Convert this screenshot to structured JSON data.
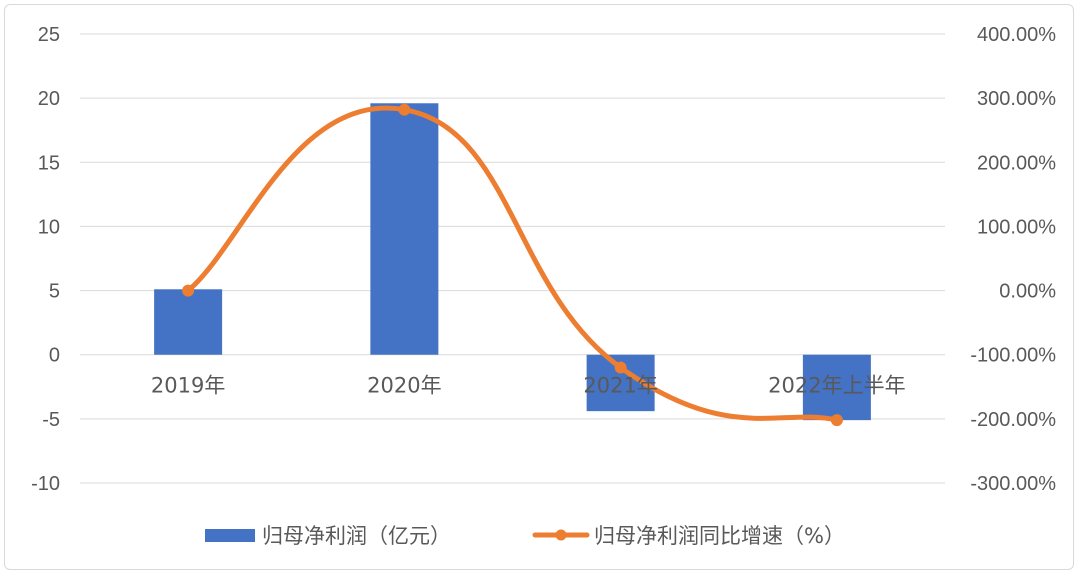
{
  "chart_data": {
    "type": "bar+line",
    "categories": [
      "2019年",
      "2020年",
      "2021年",
      "2022年上半年"
    ],
    "series": [
      {
        "name": "归母净利润（亿元）",
        "type": "bar",
        "axis": "left",
        "color": "#4472C4",
        "values": [
          5.1,
          19.6,
          -4.4,
          -5.1
        ]
      },
      {
        "name": "归母净利润同比增速（%）",
        "type": "line",
        "axis": "right",
        "color": "#ED7D31",
        "smooth": true,
        "values": [
          0.0,
          282.0,
          -120.0,
          -202.0
        ]
      }
    ],
    "y_left": {
      "ylim": [
        -10,
        25
      ],
      "ticks": [
        25,
        20,
        15,
        10,
        5,
        0,
        -5,
        -10
      ],
      "tick_labels": [
        "25",
        "20",
        "15",
        "10",
        "5",
        "0",
        "-5",
        "-10"
      ]
    },
    "y_right": {
      "ylim": [
        -300,
        400
      ],
      "ticks": [
        400,
        300,
        200,
        100,
        0,
        -100,
        -200,
        -300
      ],
      "tick_labels": [
        "400.00%",
        "300.00%",
        "200.00%",
        "100.00%",
        "0.00%",
        "-100.00%",
        "-200.00%",
        "-300.00%"
      ]
    },
    "grid": true,
    "legend": "bottom",
    "title": "",
    "xlabel": "",
    "ylabel": ""
  }
}
